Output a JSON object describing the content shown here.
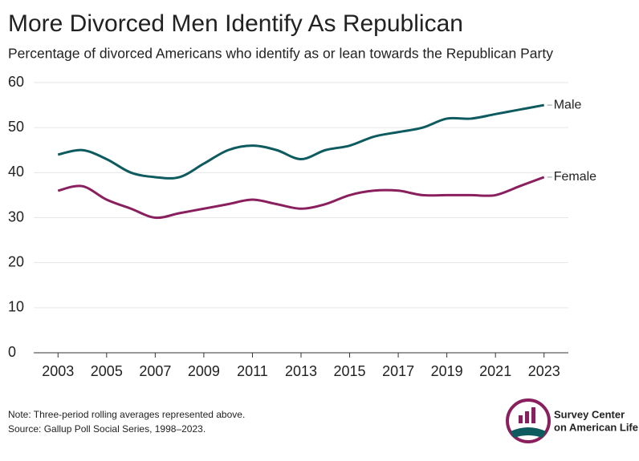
{
  "chart_data": {
    "type": "line",
    "title": "More Divorced Men Identify As Republican",
    "subtitle": "Percentage of divorced Americans who identify as or lean towards the Republican Party",
    "x": [
      2003,
      2004,
      2005,
      2006,
      2007,
      2008,
      2009,
      2010,
      2011,
      2012,
      2013,
      2014,
      2015,
      2016,
      2017,
      2018,
      2019,
      2020,
      2021,
      2022,
      2023
    ],
    "series": [
      {
        "name": "Male",
        "color": "#0d5a5f",
        "values": [
          44,
          45,
          43,
          40,
          39,
          39,
          42,
          45,
          46,
          45,
          43,
          45,
          46,
          48,
          49,
          50,
          52,
          52,
          53,
          54,
          55
        ]
      },
      {
        "name": "Female",
        "color": "#8a1f5e",
        "values": [
          36,
          37,
          34,
          32,
          30,
          31,
          32,
          33,
          34,
          33,
          32,
          33,
          35,
          36,
          36,
          35,
          35,
          35,
          35,
          37,
          39
        ]
      }
    ],
    "xlim": [
      2002,
      2024
    ],
    "xticks": [
      2003,
      2005,
      2007,
      2009,
      2011,
      2013,
      2015,
      2017,
      2019,
      2021,
      2023
    ],
    "ylim": [
      0,
      60
    ],
    "yticks": [
      0,
      10,
      20,
      30,
      40,
      50,
      60
    ],
    "grid": true,
    "notes": [
      "Note: Three-period rolling averages represented above.",
      "Source: Gallup Poll Social Series, 1998–2023."
    ],
    "logo": [
      "Survey Center",
      "on American Life"
    ]
  }
}
